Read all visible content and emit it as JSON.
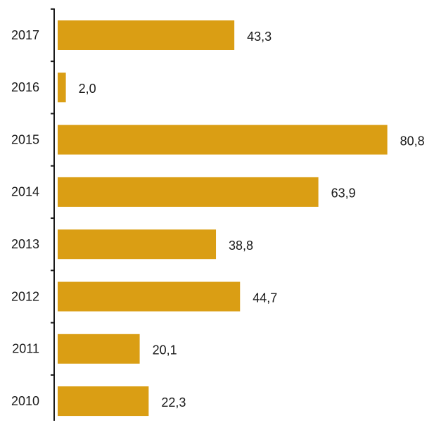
{
  "chart_data": {
    "type": "bar",
    "orientation": "horizontal",
    "categories": [
      "2017",
      "2016",
      "2015",
      "2014",
      "2013",
      "2012",
      "2011",
      "2010"
    ],
    "values": [
      43.3,
      2.0,
      80.8,
      63.9,
      38.8,
      44.7,
      20.1,
      22.3
    ],
    "data_labels": [
      "43,3",
      "2,0",
      "80,8",
      "63,9",
      "38,8",
      "44,7",
      "20,1",
      "22,3"
    ],
    "title": "",
    "xlabel": "",
    "ylabel": "",
    "xlim": [
      0,
      83
    ],
    "grid": false,
    "legend": "none",
    "colors": {
      "bar": "#DA9E14",
      "axis": "#1a1a1a",
      "text": "#1a1a1a"
    }
  }
}
